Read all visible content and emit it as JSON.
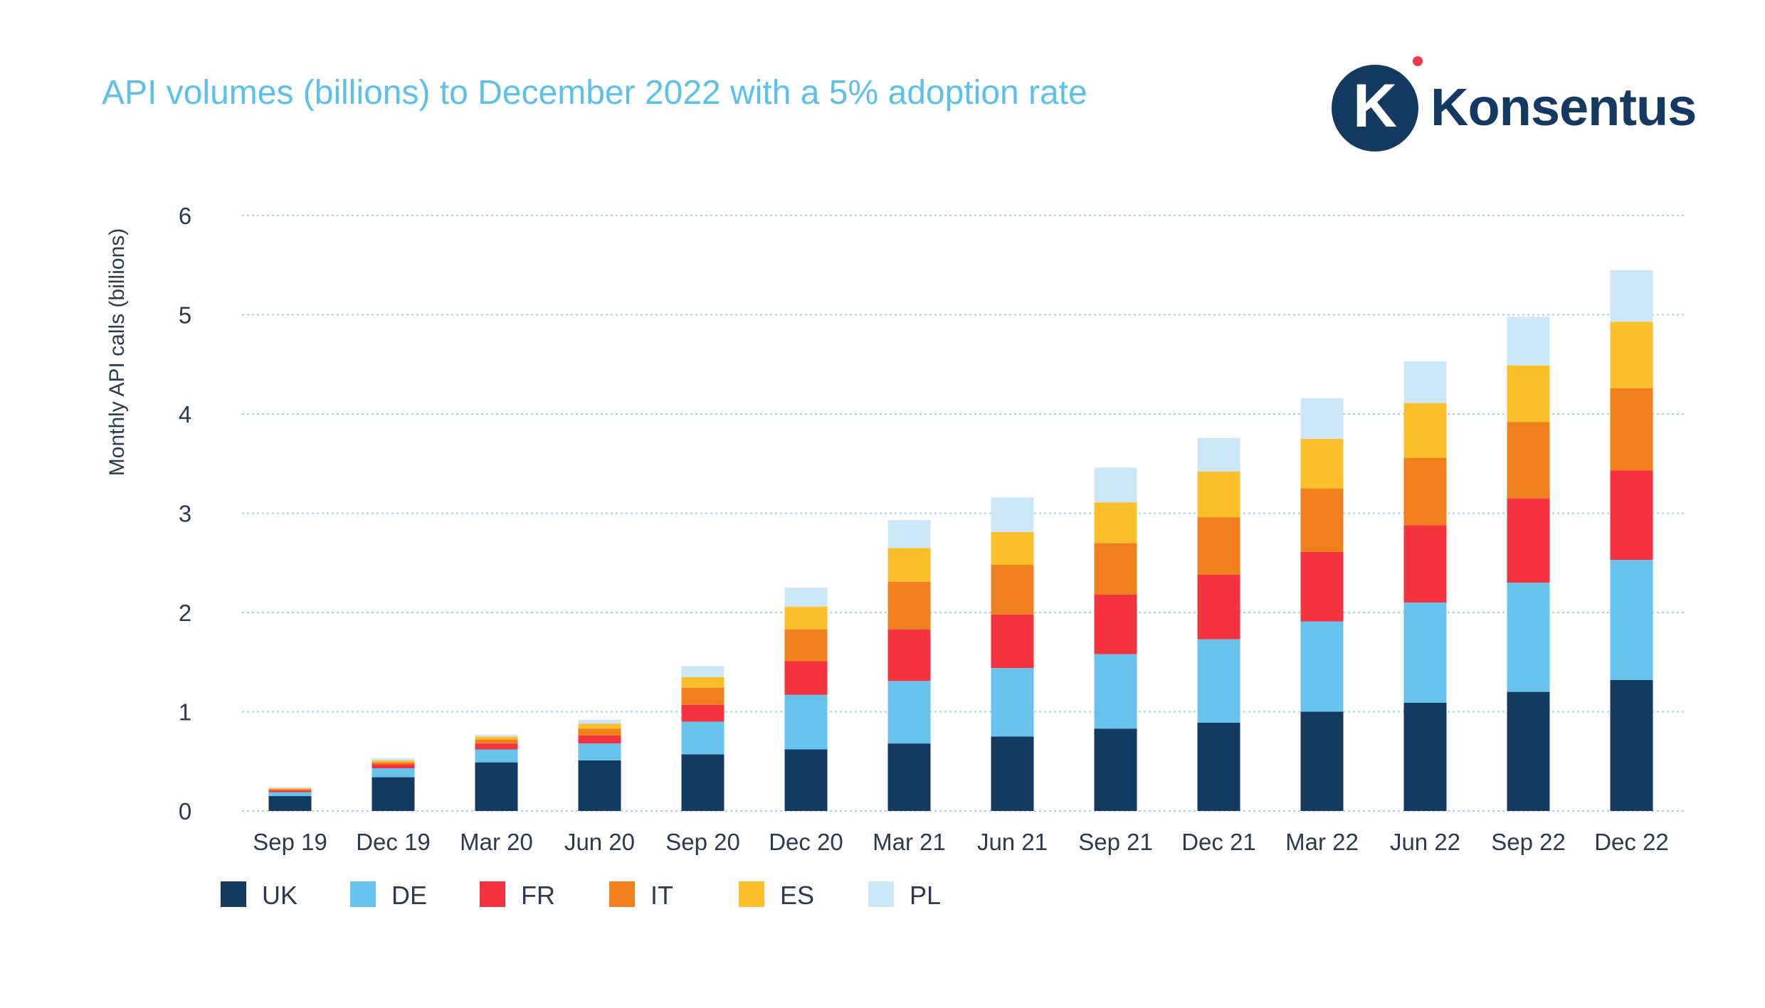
{
  "title": "API volumes (billions) to December 2022 with a 5% adoption rate",
  "brand": {
    "name": "Konsentus",
    "letter": "K",
    "navy": "#143a62",
    "dot": "#f0394f"
  },
  "chart_data": {
    "type": "bar",
    "stacked": true,
    "title": "API volumes (billions) to December 2022 with a 5% adoption rate",
    "xlabel": "",
    "ylabel": "Monthly API calls (billions)",
    "ylim": [
      0,
      6
    ],
    "yticks": [
      0,
      1,
      2,
      3,
      4,
      5,
      6
    ],
    "grid": true,
    "legend_position": "bottom-left",
    "categories": [
      "Sep 19",
      "Dec 19",
      "Mar 20",
      "Jun 20",
      "Sep 20",
      "Dec 20",
      "Mar 21",
      "Jun 21",
      "Sep 21",
      "Dec 21",
      "Mar 22",
      "Jun 22",
      "Sep 22",
      "Dec 22"
    ],
    "series": [
      {
        "name": "UK",
        "color": "#143a62",
        "values": [
          0.15,
          0.34,
          0.49,
          0.51,
          0.57,
          0.62,
          0.68,
          0.75,
          0.83,
          0.89,
          1.0,
          1.09,
          1.2,
          1.32
        ]
      },
      {
        "name": "DE",
        "color": "#68c3ec",
        "values": [
          0.04,
          0.09,
          0.13,
          0.17,
          0.33,
          0.55,
          0.63,
          0.69,
          0.75,
          0.84,
          0.91,
          1.01,
          1.1,
          1.21
        ]
      },
      {
        "name": "FR",
        "color": "#f5333f",
        "values": [
          0.02,
          0.04,
          0.06,
          0.08,
          0.17,
          0.34,
          0.52,
          0.54,
          0.6,
          0.65,
          0.7,
          0.78,
          0.85,
          0.9
        ]
      },
      {
        "name": "IT",
        "color": "#f0801e",
        "values": [
          0.01,
          0.02,
          0.04,
          0.07,
          0.17,
          0.32,
          0.48,
          0.5,
          0.52,
          0.58,
          0.64,
          0.68,
          0.77,
          0.83
        ]
      },
      {
        "name": "ES",
        "color": "#fbbf2b",
        "values": [
          0.01,
          0.02,
          0.03,
          0.05,
          0.11,
          0.23,
          0.34,
          0.33,
          0.41,
          0.46,
          0.5,
          0.55,
          0.57,
          0.67
        ]
      },
      {
        "name": "PL",
        "color": "#cbe7f8",
        "values": [
          0.01,
          0.02,
          0.02,
          0.04,
          0.11,
          0.19,
          0.28,
          0.35,
          0.35,
          0.34,
          0.41,
          0.42,
          0.49,
          0.52
        ]
      }
    ]
  }
}
